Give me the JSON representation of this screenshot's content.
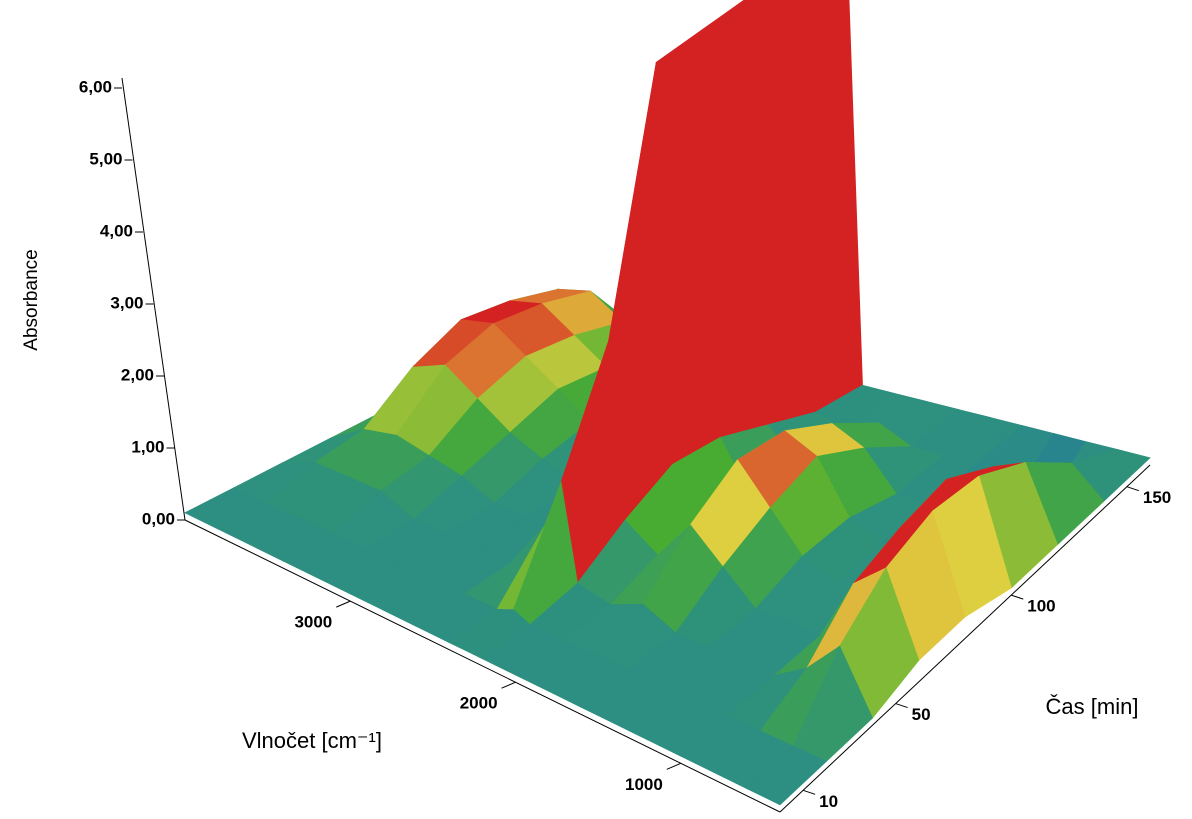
{
  "chart_data": {
    "type": "surface3d",
    "z_label": "Absorbance",
    "x_label": "Vlnočet [cm⁻¹]",
    "y_label": "Čas [min]",
    "x": [
      4000,
      3800,
      3600,
      3400,
      3200,
      3000,
      2800,
      2600,
      2400,
      2300,
      2200,
      2000,
      1800,
      1600,
      1400,
      1200,
      1000,
      800,
      600,
      400
    ],
    "y": [
      0,
      20,
      40,
      60,
      80,
      100,
      120,
      140,
      160
    ],
    "values": [
      [
        0.1,
        0.1,
        0.1,
        0.1,
        0.1,
        0.1,
        0.1,
        0.1,
        0.1,
        0.1,
        0.1,
        0.1,
        0.1,
        0.1,
        0.1,
        0.1,
        0.1,
        0.1,
        0.1,
        0.1
      ],
      [
        0.1,
        0.1,
        0.1,
        0.1,
        0.1,
        0.1,
        0.1,
        0.1,
        0.1,
        0.2,
        0.1,
        0.1,
        0.1,
        0.1,
        0.1,
        0.1,
        0.1,
        0.1,
        0.1,
        0.1
      ],
      [
        0.1,
        0.3,
        0.3,
        0.3,
        0.1,
        0.1,
        0.1,
        0.1,
        0.8,
        1.5,
        0.2,
        0.1,
        0.3,
        0.1,
        0.1,
        0.1,
        0.1,
        0.4,
        0.9,
        0.1
      ],
      [
        0.1,
        0.4,
        0.5,
        0.4,
        0.3,
        0.1,
        0.1,
        0.1,
        1.5,
        3.0,
        0.6,
        0.3,
        0.9,
        0.5,
        0.1,
        0.1,
        0.1,
        1.0,
        1.4,
        0.3
      ],
      [
        0.1,
        0.9,
        1.1,
        0.8,
        0.5,
        0.3,
        0.1,
        0.1,
        2.5,
        6.4,
        0.9,
        0.4,
        1.3,
        0.8,
        0.3,
        0.1,
        0.3,
        1.2,
        1.6,
        0.3
      ],
      [
        0.1,
        1.2,
        1.3,
        1.0,
        0.7,
        0.4,
        0.1,
        0.3,
        2.0,
        6.4,
        0.8,
        0.1,
        1.2,
        1.0,
        0.3,
        0.1,
        0.1,
        1.3,
        1.5,
        0.1
      ],
      [
        0.1,
        1.1,
        1.2,
        0.9,
        0.6,
        0.4,
        0.1,
        0.1,
        1.2,
        6.4,
        0.5,
        0.1,
        0.8,
        0.6,
        0.1,
        0.1,
        -0.2,
        0.9,
        1.1,
        0.1
      ],
      [
        0.1,
        0.9,
        1.0,
        0.7,
        0.4,
        0.1,
        0.1,
        0.1,
        0.6,
        6.4,
        0.2,
        0.1,
        0.3,
        0.1,
        0.1,
        0.1,
        -0.3,
        -0.3,
        0.5,
        0.1
      ],
      [
        0.1,
        0.1,
        0.1,
        0.1,
        0.1,
        0.1,
        0.1,
        0.1,
        0.3,
        6.4,
        0.1,
        0.1,
        0.1,
        0.1,
        0.1,
        0.1,
        0.1,
        0.1,
        0.1,
        0.1
      ]
    ],
    "xlim": [
      4000,
      400
    ],
    "ylim": [
      0,
      160
    ],
    "zlim": [
      0,
      6
    ],
    "xticks": [
      3000,
      2000,
      1000
    ],
    "yticks": [
      10,
      50,
      100,
      150
    ],
    "zticks": [
      {
        "value": 0,
        "label": "0,00"
      },
      {
        "value": 1,
        "label": "1,00"
      },
      {
        "value": 2,
        "label": "2,00"
      },
      {
        "value": 3,
        "label": "3,00"
      },
      {
        "value": 4,
        "label": "4,00"
      },
      {
        "value": 5,
        "label": "5,00"
      },
      {
        "value": 6,
        "label": "6,00"
      }
    ],
    "colors": [
      "#2040a0",
      "#2a8a8c",
      "#2f9378",
      "#4aad30",
      "#e0d040",
      "#d42222"
    ],
    "clim": [
      -0.4,
      1.2
    ]
  }
}
